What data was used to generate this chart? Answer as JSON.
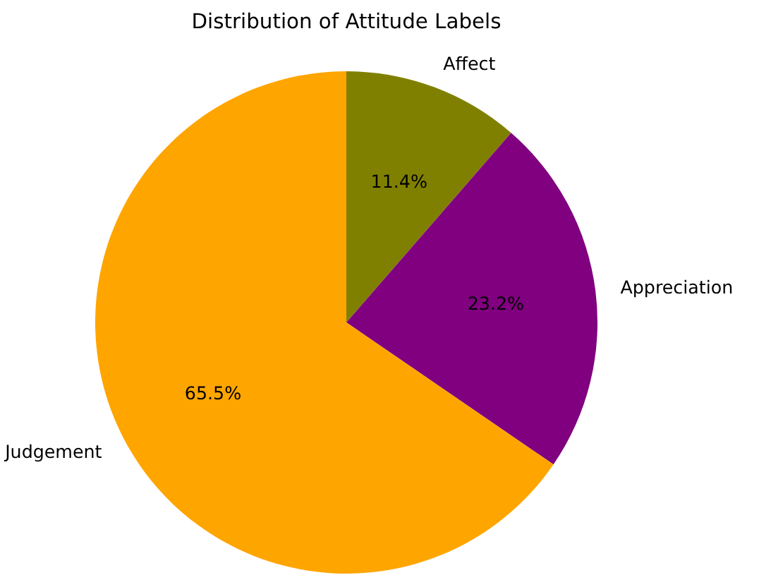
{
  "chart_data": {
    "type": "pie",
    "title": "Distribution of Attitude Labels",
    "categories": [
      "Affect",
      "Appreciation",
      "Judgement"
    ],
    "values": [
      11.4,
      23.2,
      65.5
    ],
    "colors": [
      "#808000",
      "#800080",
      "#ffa500"
    ],
    "value_labels": [
      "11.4%",
      "23.2%",
      "65.5%"
    ]
  }
}
